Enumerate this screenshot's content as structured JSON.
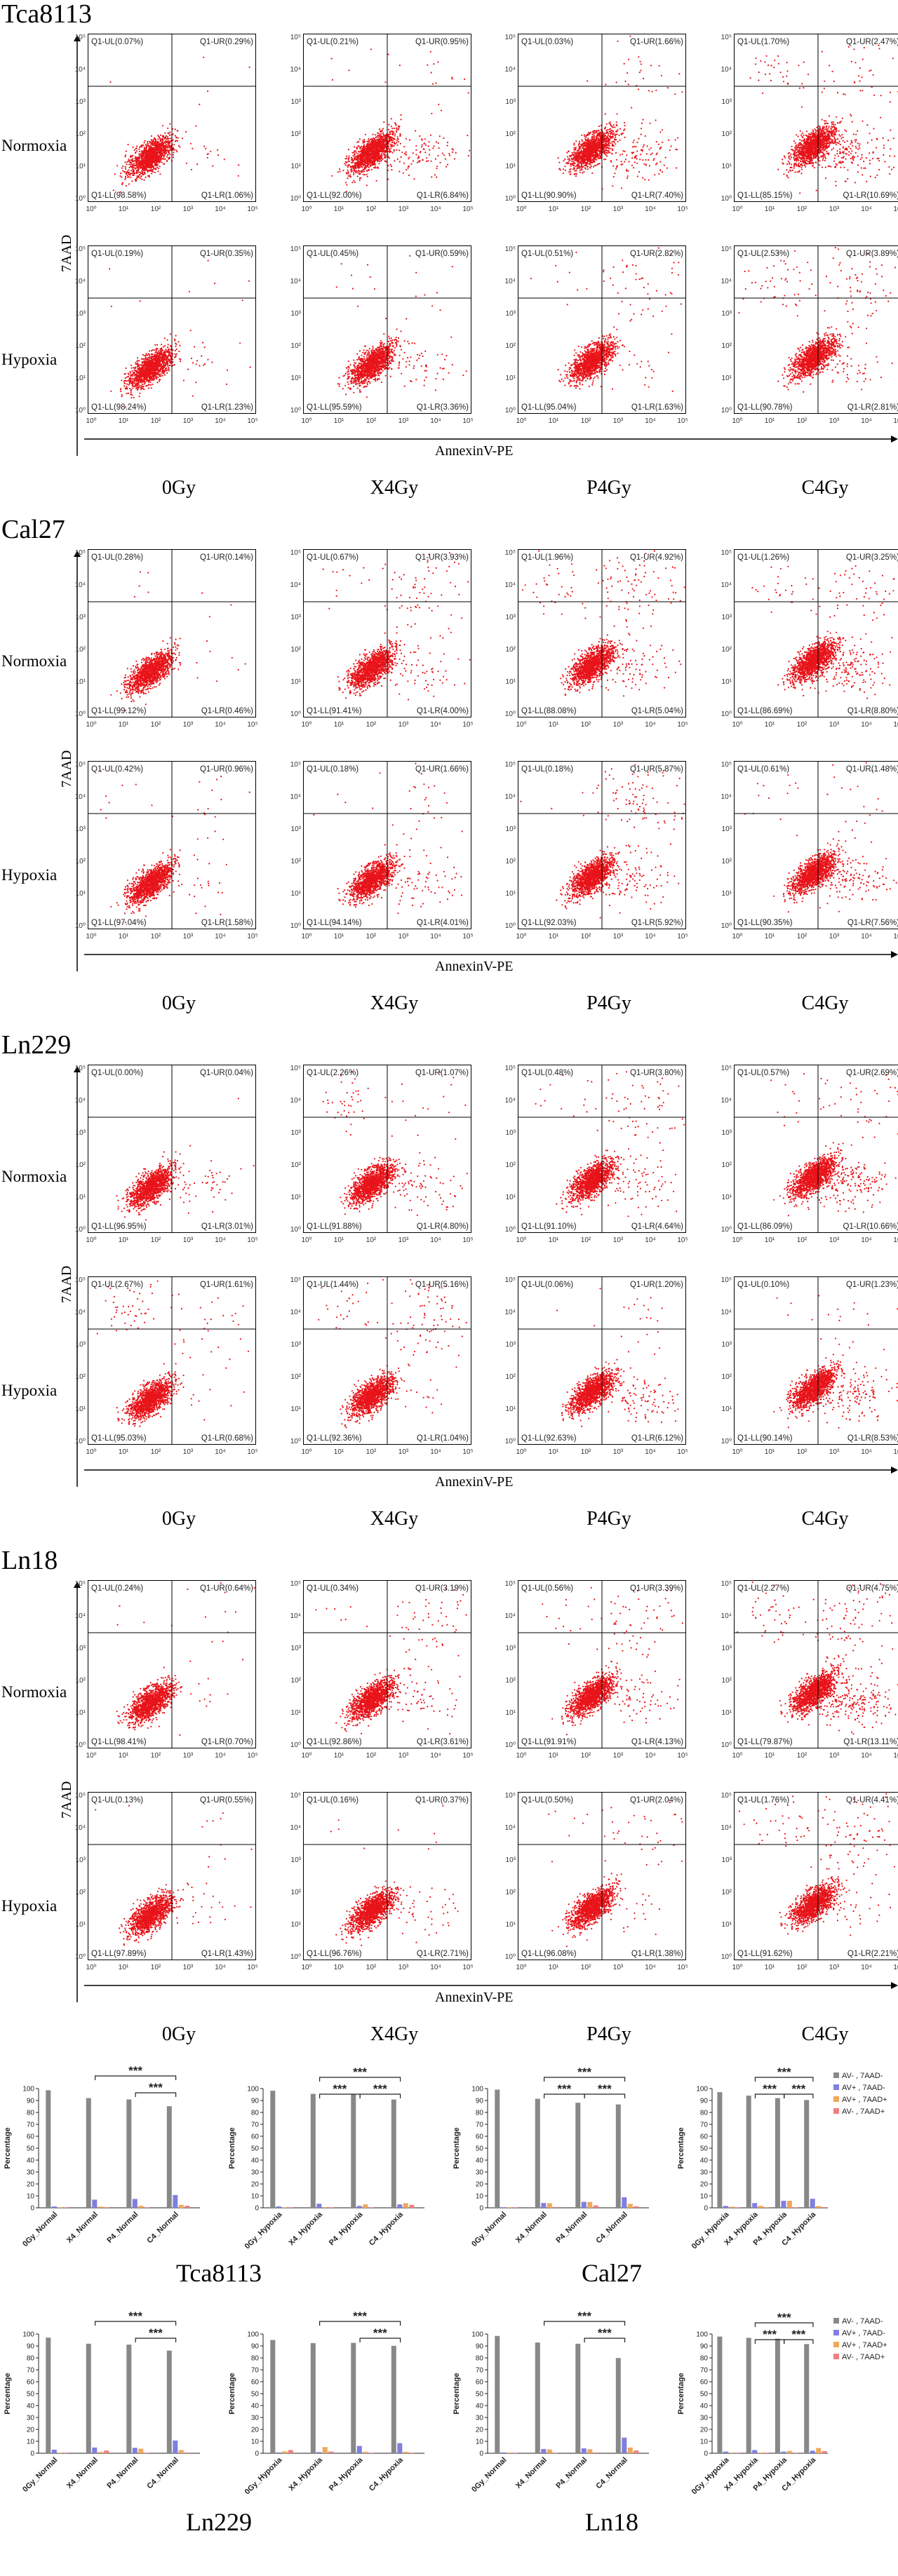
{
  "axes": {
    "y_title": "7AAD",
    "x_title": "AnnexinV-PE",
    "ticks": [
      "10⁰",
      "10¹",
      "10²",
      "10³",
      "10⁴",
      "10⁵"
    ]
  },
  "row_labels": [
    "Normoxia",
    "Hypoxia"
  ],
  "col_labels": [
    "0Gy",
    "X4Gy",
    "P4Gy",
    "C4Gy"
  ],
  "colors": {
    "dots": "#e8141a",
    "bar_grey": "#888888",
    "bar_blue": "#7f7fe0",
    "bar_orange": "#f0a85a",
    "bar_pink": "#f08080"
  },
  "sections": [
    {
      "title": "Tca8113",
      "plots": [
        [
          {
            "UL": "Q1-UL(0.07%)",
            "UR": "Q1-UR(0.29%)",
            "LL": "Q1-LL(98.58%)",
            "LR": "Q1-LR(1.06%)"
          },
          {
            "UL": "Q1-UL(0.21%)",
            "UR": "Q1-UR(0.95%)",
            "LL": "Q1-LL(92.00%)",
            "LR": "Q1-LR(6.84%)"
          },
          {
            "UL": "Q1-UL(0.03%)",
            "UR": "Q1-UR(1.66%)",
            "LL": "Q1-LL(90.90%)",
            "LR": "Q1-LR(7.40%)"
          },
          {
            "UL": "Q1-UL(1.70%)",
            "UR": "Q1-UR(2.47%)",
            "LL": "Q1-LL(85.15%)",
            "LR": "Q1-LR(10.69%)"
          }
        ],
        [
          {
            "UL": "Q1-UL(0.19%)",
            "UR": "Q1-UR(0.35%)",
            "LL": "Q1-LL(98.24%)",
            "LR": "Q1-LR(1.23%)"
          },
          {
            "UL": "Q1-UL(0.45%)",
            "UR": "Q1-UR(0.59%)",
            "LL": "Q1-LL(95.59%)",
            "LR": "Q1-LR(3.36%)"
          },
          {
            "UL": "Q1-UL(0.51%)",
            "UR": "Q1-UR(2.82%)",
            "LL": "Q1-LL(95.04%)",
            "LR": "Q1-LR(1.63%)"
          },
          {
            "UL": "Q1-UL(2.53%)",
            "UR": "Q1-UR(3.89%)",
            "LL": "Q1-LL(90.78%)",
            "LR": "Q1-LR(2.81%)"
          }
        ]
      ]
    },
    {
      "title": "Cal27",
      "plots": [
        [
          {
            "UL": "Q1-UL(0.28%)",
            "UR": "Q1-UR(0.14%)",
            "LL": "Q1-LL(99.12%)",
            "LR": "Q1-LR(0.46%)"
          },
          {
            "UL": "Q1-UL(0.67%)",
            "UR": "Q1-UR(3.93%)",
            "LL": "Q1-LL(91.41%)",
            "LR": "Q1-LR(4.00%)"
          },
          {
            "UL": "Q1-UL(1.96%)",
            "UR": "Q1-UR(4.92%)",
            "LL": "Q1-LL(88.08%)",
            "LR": "Q1-LR(5.04%)"
          },
          {
            "UL": "Q1-UL(1.26%)",
            "UR": "Q1-UR(3.25%)",
            "LL": "Q1-LL(86.69%)",
            "LR": "Q1-LR(8.80%)"
          }
        ],
        [
          {
            "UL": "Q1-UL(0.42%)",
            "UR": "Q1-UR(0.96%)",
            "LL": "Q1-LL(97.04%)",
            "LR": "Q1-LR(1.58%)"
          },
          {
            "UL": "Q1-UL(0.18%)",
            "UR": "Q1-UR(1.66%)",
            "LL": "Q1-LL(94.14%)",
            "LR": "Q1-LR(4.01%)"
          },
          {
            "UL": "Q1-UL(0.18%)",
            "UR": "Q1-UR(5.87%)",
            "LL": "Q1-LL(92.03%)",
            "LR": "Q1-LR(5.92%)"
          },
          {
            "UL": "Q1-UL(0.61%)",
            "UR": "Q1-UR(1.48%)",
            "LL": "Q1-LL(90.35%)",
            "LR": "Q1-LR(7.56%)"
          }
        ]
      ]
    },
    {
      "title": "Ln229",
      "plots": [
        [
          {
            "UL": "Q1-UL(0.00%)",
            "UR": "Q1-UR(0.04%)",
            "LL": "Q1-LL(96.95%)",
            "LR": "Q1-LR(3.01%)"
          },
          {
            "UL": "Q1-UL(2.26%)",
            "UR": "Q1-UR(1.07%)",
            "LL": "Q1-LL(91.88%)",
            "LR": "Q1-LR(4.80%)"
          },
          {
            "UL": "Q1-UL(0.48%)",
            "UR": "Q1-UR(3.80%)",
            "LL": "Q1-LL(91.10%)",
            "LR": "Q1-LR(4.64%)"
          },
          {
            "UL": "Q1-UL(0.57%)",
            "UR": "Q1-UR(2.69%)",
            "LL": "Q1-LL(86.09%)",
            "LR": "Q1-LR(10.66%)"
          }
        ],
        [
          {
            "UL": "Q1-UL(2.67%)",
            "UR": "Q1-UR(1.61%)",
            "LL": "Q1-LL(95.03%)",
            "LR": "Q1-LR(0.68%)"
          },
          {
            "UL": "Q1-UL(1.44%)",
            "UR": "Q1-UR(5.16%)",
            "LL": "Q1-LL(92.36%)",
            "LR": "Q1-LR(1.04%)"
          },
          {
            "UL": "Q1-UL(0.06%)",
            "UR": "Q1-UR(1.20%)",
            "LL": "Q1-LL(92.63%)",
            "LR": "Q1-LR(6.12%)"
          },
          {
            "UL": "Q1-UL(0.10%)",
            "UR": "Q1-UR(1.23%)",
            "LL": "Q1-LL(90.14%)",
            "LR": "Q1-LR(8.53%)"
          }
        ]
      ]
    },
    {
      "title": "Ln18",
      "plots": [
        [
          {
            "UL": "Q1-UL(0.24%)",
            "UR": "Q1-UR(0.64%)",
            "LL": "Q1-LL(98.41%)",
            "LR": "Q1-LR(0.70%)"
          },
          {
            "UL": "Q1-UL(0.34%)",
            "UR": "Q1-UR(3.19%)",
            "LL": "Q1-LL(92.86%)",
            "LR": "Q1-LR(3.61%)"
          },
          {
            "UL": "Q1-UL(0.56%)",
            "UR": "Q1-UR(3.39%)",
            "LL": "Q1-LL(91.91%)",
            "LR": "Q1-LR(4.13%)"
          },
          {
            "UL": "Q1-UL(2.27%)",
            "UR": "Q1-UR(4.75%)",
            "LL": "Q1-LL(79.87%)",
            "LR": "Q1-LR(13.11%)"
          }
        ],
        [
          {
            "UL": "Q1-UL(0.13%)",
            "UR": "Q1-UR(0.55%)",
            "LL": "Q1-LL(97.89%)",
            "LR": "Q1-LR(1.43%)"
          },
          {
            "UL": "Q1-UL(0.16%)",
            "UR": "Q1-UR(0.37%)",
            "LL": "Q1-LL(96.76%)",
            "LR": "Q1-LR(2.71%)"
          },
          {
            "UL": "Q1-UL(0.50%)",
            "UR": "Q1-UR(2.04%)",
            "LL": "Q1-LL(96.08%)",
            "LR": "Q1-LR(1.38%)"
          },
          {
            "UL": "Q1-UL(1.76%)",
            "UR": "Q1-UR(4.41%)",
            "LL": "Q1-LL(91.62%)",
            "LR": "Q1-LR(2.21%)"
          }
        ]
      ]
    }
  ],
  "bar_captions": [
    "Tca8113",
    "Cal27",
    "Ln229",
    "Ln18"
  ],
  "chart_data": [
    {
      "type": "bar",
      "ylabel": "Percentage",
      "ylim": [
        0,
        100
      ],
      "yticks": [
        0,
        10,
        20,
        30,
        40,
        50,
        60,
        70,
        80,
        90,
        100
      ],
      "categories": [
        "0Gy_Normal",
        "X4_Normal",
        "P4_Normal",
        "C4_Normal"
      ],
      "series": [
        {
          "name": "AV- , 7AAD-",
          "values": [
            98.6,
            92.0,
            90.9,
            85.2
          ]
        },
        {
          "name": "AV+ , 7AAD-",
          "values": [
            1.1,
            6.8,
            7.4,
            10.7
          ]
        },
        {
          "name": "AV+ , 7AAD+",
          "values": [
            0.3,
            1.0,
            1.7,
            2.5
          ]
        },
        {
          "name": "AV- , 7AAD+",
          "values": [
            0.1,
            0.2,
            0.0,
            1.7
          ]
        }
      ],
      "significance": [
        "***",
        "***"
      ],
      "legend": false
    },
    {
      "type": "bar",
      "ylabel": "Percentage",
      "ylim": [
        0,
        100
      ],
      "yticks": [
        0,
        10,
        20,
        30,
        40,
        50,
        60,
        70,
        80,
        90,
        100
      ],
      "categories": [
        "0Gy_Hypoxia",
        "X4_Hypoxia",
        "P4_Hypoxia",
        "C4_Hypoxia"
      ],
      "series": [
        {
          "name": "AV- , 7AAD-",
          "values": [
            98.2,
            95.6,
            95.0,
            90.8
          ]
        },
        {
          "name": "AV+ , 7AAD-",
          "values": [
            1.2,
            3.4,
            1.6,
            2.8
          ]
        },
        {
          "name": "AV+ , 7AAD+",
          "values": [
            0.4,
            0.6,
            2.8,
            3.9
          ]
        },
        {
          "name": "AV- , 7AAD+",
          "values": [
            0.2,
            0.5,
            0.5,
            2.5
          ]
        }
      ],
      "significance": [
        "***",
        "***",
        "***"
      ],
      "legend": false
    },
    {
      "type": "bar",
      "ylabel": "Percentage",
      "ylim": [
        0,
        100
      ],
      "yticks": [
        0,
        10,
        20,
        30,
        40,
        50,
        60,
        70,
        80,
        90,
        100
      ],
      "categories": [
        "0Gy_Normal",
        "X4_Normal",
        "P4_Normal",
        "C4_Normal"
      ],
      "series": [
        {
          "name": "AV- , 7AAD-",
          "values": [
            99.1,
            91.4,
            88.1,
            86.7
          ]
        },
        {
          "name": "AV+ , 7AAD-",
          "values": [
            0.5,
            4.0,
            5.0,
            8.8
          ]
        },
        {
          "name": "AV+ , 7AAD+",
          "values": [
            0.1,
            3.9,
            4.9,
            3.3
          ]
        },
        {
          "name": "AV- , 7AAD+",
          "values": [
            0.3,
            0.7,
            2.0,
            1.3
          ]
        }
      ],
      "significance": [
        "***",
        "***",
        "***"
      ],
      "legend": false
    },
    {
      "type": "bar",
      "ylabel": "Percentage",
      "ylim": [
        0,
        100
      ],
      "yticks": [
        0,
        10,
        20,
        30,
        40,
        50,
        60,
        70,
        80,
        90,
        100
      ],
      "categories": [
        "0Gy_Hypoxia",
        "X4_Hypoxia",
        "P4_Hypoxia",
        "C4_Hypoxia"
      ],
      "series": [
        {
          "name": "AV- , 7AAD-",
          "values": [
            97.0,
            94.1,
            92.0,
            90.4
          ]
        },
        {
          "name": "AV+ , 7AAD-",
          "values": [
            1.6,
            4.0,
            5.9,
            7.6
          ]
        },
        {
          "name": "AV+ , 7AAD+",
          "values": [
            1.0,
            1.7,
            5.9,
            1.5
          ]
        },
        {
          "name": "AV- , 7AAD+",
          "values": [
            0.4,
            0.2,
            0.2,
            0.6
          ]
        }
      ],
      "significance": [
        "***",
        "***",
        "***"
      ],
      "legend": true
    },
    {
      "type": "bar",
      "ylabel": "Percentage",
      "ylim": [
        0,
        100
      ],
      "yticks": [
        0,
        10,
        20,
        30,
        40,
        50,
        60,
        70,
        80,
        90,
        100
      ],
      "categories": [
        "0Gy_Normal",
        "X4_Normal",
        "P4_Normal",
        "C4_Normal"
      ],
      "series": [
        {
          "name": "AV- , 7AAD-",
          "values": [
            97.0,
            91.9,
            91.1,
            86.1
          ]
        },
        {
          "name": "AV+ , 7AAD-",
          "values": [
            3.0,
            4.8,
            4.6,
            10.7
          ]
        },
        {
          "name": "AV+ , 7AAD+",
          "values": [
            0.0,
            1.1,
            3.8,
            2.7
          ]
        },
        {
          "name": "AV- , 7AAD+",
          "values": [
            0.0,
            2.3,
            0.5,
            0.6
          ]
        }
      ],
      "significance": [
        "***",
        "***"
      ],
      "legend": false
    },
    {
      "type": "bar",
      "ylabel": "Percentage",
      "ylim": [
        0,
        100
      ],
      "yticks": [
        0,
        10,
        20,
        30,
        40,
        50,
        60,
        70,
        80,
        90,
        100
      ],
      "categories": [
        "0Gy_Hypoxia",
        "X4_Hypoxia",
        "P4_Hypoxia",
        "C4_Hypoxia"
      ],
      "series": [
        {
          "name": "AV- , 7AAD-",
          "values": [
            95.0,
            92.4,
            92.6,
            90.1
          ]
        },
        {
          "name": "AV+ , 7AAD-",
          "values": [
            0.7,
            1.0,
            6.1,
            8.5
          ]
        },
        {
          "name": "AV+ , 7AAD+",
          "values": [
            1.6,
            5.2,
            1.2,
            1.2
          ]
        },
        {
          "name": "AV- , 7AAD+",
          "values": [
            2.7,
            1.4,
            0.1,
            0.1
          ]
        }
      ],
      "significance": [
        "***",
        "***"
      ],
      "legend": false
    },
    {
      "type": "bar",
      "ylabel": "Percentage",
      "ylim": [
        0,
        100
      ],
      "yticks": [
        0,
        10,
        20,
        30,
        40,
        50,
        60,
        70,
        80,
        90,
        100
      ],
      "categories": [
        "0Gy_Normal",
        "X4_Normal",
        "P4_Normal",
        "C4_Normal"
      ],
      "series": [
        {
          "name": "AV- , 7AAD-",
          "values": [
            98.4,
            92.9,
            91.9,
            79.9
          ]
        },
        {
          "name": "AV+ , 7AAD-",
          "values": [
            0.7,
            3.6,
            4.1,
            13.1
          ]
        },
        {
          "name": "AV+ , 7AAD+",
          "values": [
            0.6,
            3.2,
            3.4,
            4.8
          ]
        },
        {
          "name": "AV- , 7AAD+",
          "values": [
            0.2,
            0.3,
            0.6,
            2.3
          ]
        }
      ],
      "significance": [
        "***",
        "***"
      ],
      "legend": false
    },
    {
      "type": "bar",
      "ylabel": "Percentage",
      "ylim": [
        0,
        100
      ],
      "yticks": [
        0,
        10,
        20,
        30,
        40,
        50,
        60,
        70,
        80,
        90,
        100
      ],
      "categories": [
        "0Gy_Hypoxia",
        "X4_Hypoxia",
        "P4_Hypoxia",
        "C4_Hypoxia"
      ],
      "series": [
        {
          "name": "AV- , 7AAD-",
          "values": [
            97.9,
            96.8,
            96.1,
            91.6
          ]
        },
        {
          "name": "AV+ , 7AAD-",
          "values": [
            1.4,
            2.7,
            1.4,
            2.2
          ]
        },
        {
          "name": "AV+ , 7AAD+",
          "values": [
            0.6,
            0.4,
            2.0,
            4.4
          ]
        },
        {
          "name": "AV- , 7AAD+",
          "values": [
            0.1,
            0.2,
            0.5,
            1.8
          ]
        }
      ],
      "significance": [
        "***",
        "***",
        "***"
      ],
      "legend": true
    }
  ]
}
